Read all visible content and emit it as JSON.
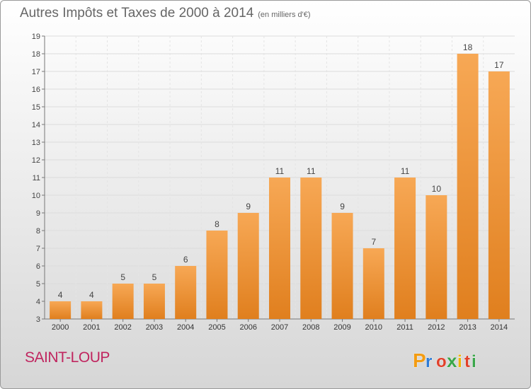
{
  "title": "Autres Impôts et Taxes de 2000 à 2014",
  "unit_label": "(en milliers d'€)",
  "commune": "SAINT-LOUP",
  "brand": {
    "text": "Proxiti",
    "letters": [
      "P",
      "r",
      "o",
      "x",
      "i",
      "t",
      "i"
    ],
    "colors": [
      "#f39c12",
      "#2e7bd6",
      "#e0412b",
      "#3aa64a",
      "#f0b400",
      "#e0412b",
      "#3aa64a"
    ]
  },
  "colors": {
    "bar_light": "#f7a855",
    "bar_dark": "#e07f1e",
    "title": "#666666",
    "commune": "#c0255f"
  },
  "chart_data": {
    "type": "bar",
    "categories": [
      "2000",
      "2001",
      "2002",
      "2003",
      "2004",
      "2005",
      "2006",
      "2007",
      "2008",
      "2009",
      "2010",
      "2011",
      "2012",
      "2013",
      "2014"
    ],
    "values": [
      4,
      4,
      5,
      5,
      6,
      8,
      9,
      11,
      11,
      9,
      7,
      11,
      10,
      18,
      17
    ],
    "title": "Autres Impôts et Taxes de 2000 à 2014",
    "ylabel": "",
    "xlabel": "",
    "ylim": [
      3,
      19
    ],
    "yticks": [
      3,
      4,
      5,
      6,
      7,
      8,
      9,
      10,
      11,
      12,
      13,
      14,
      15,
      16,
      17,
      18,
      19
    ],
    "grid": true,
    "data_labels": true
  }
}
